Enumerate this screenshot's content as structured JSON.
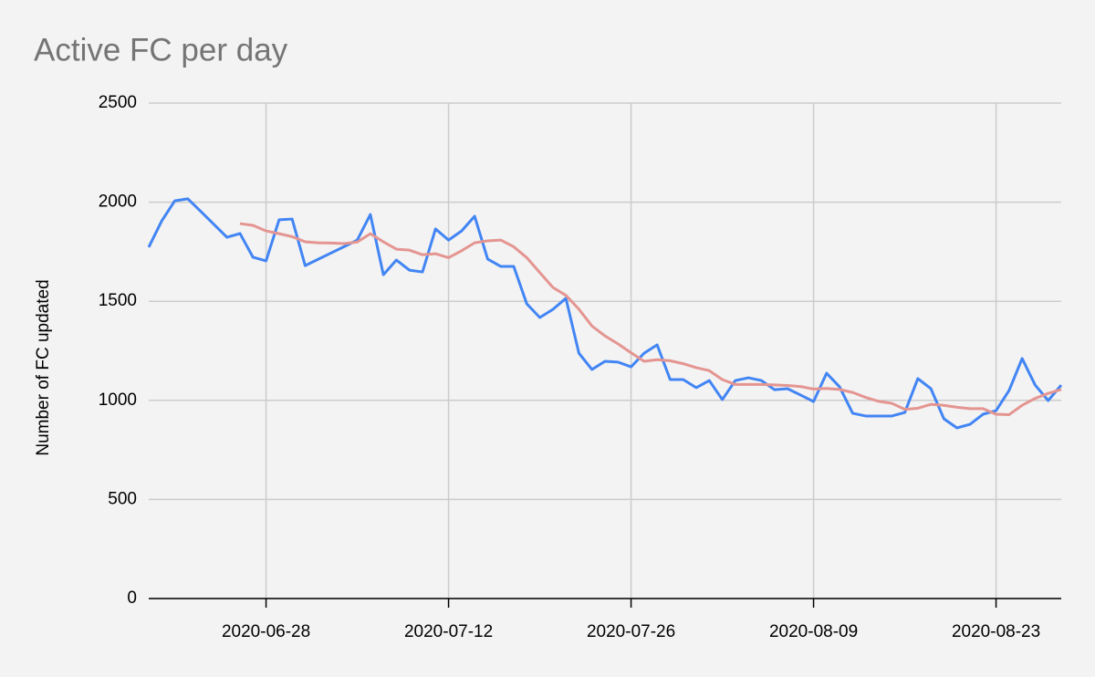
{
  "chart_data": {
    "type": "line",
    "title": "Active FC per day",
    "y_label": "Number of FC updated",
    "x": [
      "2020-06-19",
      "2020-06-20",
      "2020-06-21",
      "2020-06-22",
      "2020-06-23",
      "2020-06-24",
      "2020-06-25",
      "2020-06-26",
      "2020-06-27",
      "2020-06-28",
      "2020-06-29",
      "2020-06-30",
      "2020-07-01",
      "2020-07-02",
      "2020-07-03",
      "2020-07-04",
      "2020-07-05",
      "2020-07-06",
      "2020-07-07",
      "2020-07-08",
      "2020-07-09",
      "2020-07-10",
      "2020-07-11",
      "2020-07-12",
      "2020-07-13",
      "2020-07-14",
      "2020-07-15",
      "2020-07-16",
      "2020-07-17",
      "2020-07-18",
      "2020-07-19",
      "2020-07-20",
      "2020-07-21",
      "2020-07-22",
      "2020-07-23",
      "2020-07-24",
      "2020-07-25",
      "2020-07-26",
      "2020-07-27",
      "2020-07-28",
      "2020-07-29",
      "2020-07-30",
      "2020-07-31",
      "2020-08-01",
      "2020-08-02",
      "2020-08-03",
      "2020-08-04",
      "2020-08-05",
      "2020-08-06",
      "2020-08-07",
      "2020-08-08",
      "2020-08-09",
      "2020-08-10",
      "2020-08-11",
      "2020-08-12",
      "2020-08-13",
      "2020-08-14",
      "2020-08-15",
      "2020-08-16",
      "2020-08-17",
      "2020-08-18",
      "2020-08-19",
      "2020-08-20",
      "2020-08-21",
      "2020-08-22",
      "2020-08-23",
      "2020-08-24",
      "2020-08-25",
      "2020-08-26",
      "2020-08-27",
      "2020-08-28"
    ],
    "series": [
      {
        "color": "#4285f4",
        "width": 3,
        "values": [
          1773,
          1906,
          2007,
          2017,
          1953,
          1888,
          1823,
          1842,
          1722,
          1704,
          1911,
          1915,
          1680,
          1712,
          1744,
          1776,
          1809,
          1938,
          1634,
          1708,
          1657,
          1648,
          1865,
          1809,
          1855,
          1929,
          1713,
          1676,
          1676,
          1487,
          1418,
          1459,
          1515,
          1238,
          1156,
          1197,
          1193,
          1169,
          1238,
          1280,
          1105,
          1105,
          1064,
          1100,
          1004,
          1100,
          1114,
          1100,
          1054,
          1059,
          1027,
          994,
          1137,
          1068,
          935,
          921,
          921,
          921,
          939,
          1110,
          1059,
          907,
          861,
          879,
          930,
          948,
          1050,
          1211,
          1077,
          999,
          1077
        ]
      },
      {
        "color": "#e49591",
        "width": 3,
        "values": [
          null,
          null,
          null,
          null,
          null,
          null,
          null,
          1892,
          1883,
          1855,
          1841,
          1826,
          1800,
          1795,
          1794,
          1791,
          1799,
          1841,
          1800,
          1763,
          1758,
          1735,
          1740,
          1720,
          1755,
          1795,
          1805,
          1809,
          1775,
          1720,
          1645,
          1570,
          1530,
          1460,
          1375,
          1325,
          1285,
          1240,
          1197,
          1205,
          1200,
          1185,
          1165,
          1150,
          1105,
          1080,
          1080,
          1080,
          1078,
          1075,
          1070,
          1057,
          1060,
          1055,
          1040,
          1015,
          995,
          985,
          955,
          960,
          980,
          975,
          965,
          958,
          958,
          930,
          928,
          975,
          1010,
          1035,
          1055
        ]
      }
    ],
    "xlim": [
      "2020-06-19",
      "2020-08-28"
    ],
    "xticks": [
      "2020-06-28",
      "2020-07-12",
      "2020-07-26",
      "2020-08-09",
      "2020-08-23"
    ],
    "ylim": [
      0,
      2500
    ],
    "yticks": [
      0,
      500,
      1000,
      1500,
      2000,
      2500
    ],
    "grid": true
  }
}
